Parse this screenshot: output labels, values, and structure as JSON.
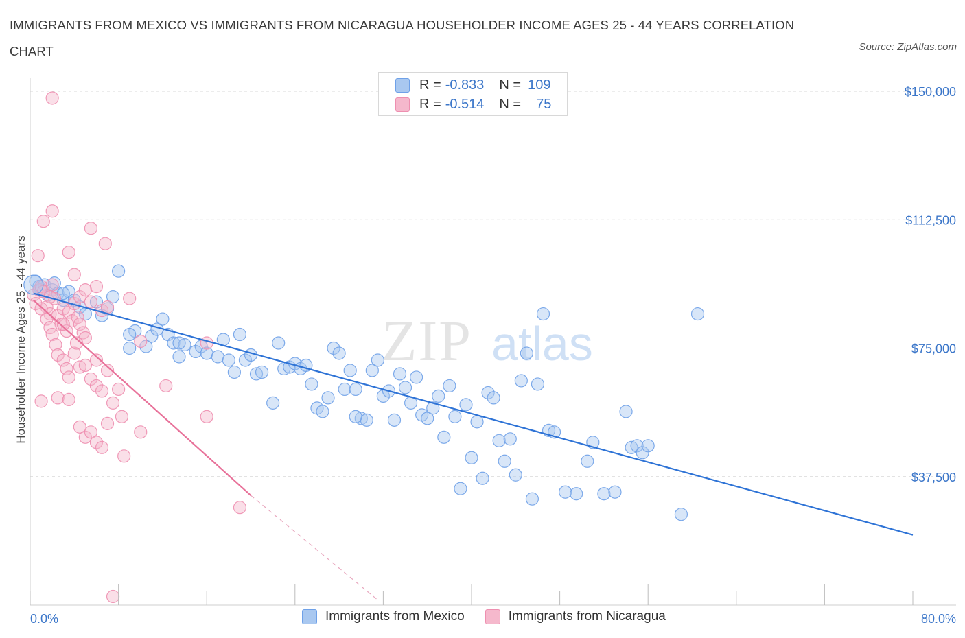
{
  "header": {
    "title": "IMMIGRANTS FROM MEXICO VS IMMIGRANTS FROM NICARAGUA HOUSEHOLDER INCOME AGES 25 - 44 YEARS CORRELATION CHART",
    "source": "Source: ZipAtlas.com"
  },
  "watermark": "ZIPatlas",
  "legend": {
    "rows": [
      {
        "r_label": "R =",
        "r_value": "-0.833",
        "n_label": "N =",
        "n_value": "109",
        "color": "#a9c8f0"
      },
      {
        "r_label": "R =",
        "r_value": "-0.514",
        "n_label": "N =",
        "n_value": "75",
        "color": "#f5b8cc"
      }
    ]
  },
  "bottom_legend": [
    "Immigrants from Mexico",
    "Immigrants from Nicaragua"
  ],
  "chart_data": {
    "type": "scatter",
    "title": "IMMIGRANTS FROM MEXICO VS IMMIGRANTS FROM NICARAGUA HOUSEHOLDER INCOME AGES 25 - 44 YEARS CORRELATION CHART",
    "xlabel": "",
    "ylabel": "Householder Income Ages 25 - 44 years",
    "xlim": [
      0,
      80
    ],
    "ylim": [
      0,
      155000
    ],
    "x_tick_labels": [
      "0.0%",
      "80.0%"
    ],
    "y_ticks": [
      37500,
      75000,
      112500,
      150000
    ],
    "y_tick_labels": [
      "$37,500",
      "$75,000",
      "$112,500",
      "$150,000"
    ],
    "grid": true,
    "series": [
      {
        "name": "Immigrants from Mexico",
        "color": "#6fa1e8",
        "fill": "#a9c8f0",
        "trend": {
          "x": [
            0.3,
            80
          ],
          "y": [
            91000,
            20500
          ]
        },
        "points": [
          [
            0.5,
            94500
          ],
          [
            0.8,
            93000
          ],
          [
            1.0,
            92000
          ],
          [
            1.3,
            93500
          ],
          [
            1.6,
            90500
          ],
          [
            2.0,
            92000
          ],
          [
            2.2,
            94000
          ],
          [
            2.5,
            91000
          ],
          [
            3.0,
            89000
          ],
          [
            3.5,
            91500
          ],
          [
            4.0,
            89000
          ],
          [
            4.5,
            87000
          ],
          [
            5.0,
            85000
          ],
          [
            6.0,
            88500
          ],
          [
            7.0,
            86500
          ],
          [
            7.5,
            90000
          ],
          [
            8.0,
            97500
          ],
          [
            9.0,
            75000
          ],
          [
            9.5,
            80000
          ],
          [
            10.5,
            75500
          ],
          [
            11.0,
            78500
          ],
          [
            11.5,
            80500
          ],
          [
            12.0,
            83500
          ],
          [
            12.5,
            79000
          ],
          [
            13.0,
            76500
          ],
          [
            13.5,
            72500
          ],
          [
            14.0,
            76000
          ],
          [
            15.0,
            74000
          ],
          [
            15.5,
            75500
          ],
          [
            16.0,
            73500
          ],
          [
            17.0,
            72500
          ],
          [
            17.5,
            77500
          ],
          [
            18.0,
            71500
          ],
          [
            18.5,
            68000
          ],
          [
            19.0,
            79000
          ],
          [
            19.5,
            71500
          ],
          [
            20.0,
            73000
          ],
          [
            20.5,
            67500
          ],
          [
            21.0,
            68000
          ],
          [
            22.0,
            59000
          ],
          [
            22.5,
            76500
          ],
          [
            23.0,
            69000
          ],
          [
            23.5,
            69500
          ],
          [
            24.0,
            70500
          ],
          [
            24.5,
            69000
          ],
          [
            25.0,
            70000
          ],
          [
            25.5,
            64500
          ],
          [
            26.0,
            57500
          ],
          [
            26.5,
            56500
          ],
          [
            27.0,
            60500
          ],
          [
            27.5,
            75000
          ],
          [
            28.0,
            73500
          ],
          [
            28.5,
            63000
          ],
          [
            29.0,
            68500
          ],
          [
            29.5,
            63000
          ],
          [
            30.0,
            54500
          ],
          [
            30.5,
            54000
          ],
          [
            31.0,
            68500
          ],
          [
            31.5,
            71500
          ],
          [
            32.0,
            61000
          ],
          [
            32.5,
            62500
          ],
          [
            33.0,
            54000
          ],
          [
            33.5,
            67500
          ],
          [
            34.0,
            63500
          ],
          [
            34.5,
            59000
          ],
          [
            35.0,
            66500
          ],
          [
            35.5,
            55500
          ],
          [
            36.0,
            54500
          ],
          [
            36.5,
            57500
          ],
          [
            37.0,
            61000
          ],
          [
            37.5,
            49000
          ],
          [
            38.0,
            64000
          ],
          [
            38.5,
            55000
          ],
          [
            39.0,
            34000
          ],
          [
            39.5,
            58500
          ],
          [
            40.0,
            43000
          ],
          [
            40.5,
            53500
          ],
          [
            41.0,
            37000
          ],
          [
            41.5,
            62000
          ],
          [
            42.0,
            60500
          ],
          [
            42.5,
            48000
          ],
          [
            43.0,
            42000
          ],
          [
            43.5,
            48500
          ],
          [
            44.0,
            38000
          ],
          [
            44.5,
            65500
          ],
          [
            45.0,
            73500
          ],
          [
            45.5,
            31000
          ],
          [
            46.0,
            64500
          ],
          [
            46.5,
            85000
          ],
          [
            47.0,
            51000
          ],
          [
            47.5,
            50500
          ],
          [
            48.5,
            33000
          ],
          [
            49.5,
            32500
          ],
          [
            50.5,
            42000
          ],
          [
            51.0,
            47500
          ],
          [
            52.0,
            32500
          ],
          [
            53.0,
            33000
          ],
          [
            54.0,
            56500
          ],
          [
            54.5,
            46000
          ],
          [
            55.0,
            46500
          ],
          [
            55.5,
            44500
          ],
          [
            56.0,
            46500
          ],
          [
            59.0,
            26500
          ],
          [
            60.5,
            85000
          ],
          [
            6.5,
            84500
          ],
          [
            9.0,
            79000
          ],
          [
            3.0,
            91000
          ],
          [
            13.5,
            76500
          ],
          [
            29.5,
            55000
          ]
        ]
      },
      {
        "name": "Immigrants from Nicaragua",
        "color": "#ee8fb0",
        "fill": "#f5b8cc",
        "trend": {
          "x": [
            0.3,
            20
          ],
          "y": [
            89000,
            32000
          ]
        },
        "trend_dashed": {
          "x": [
            20,
            31.5
          ],
          "y": [
            32000,
            1500
          ]
        },
        "points": [
          [
            0.3,
            90500
          ],
          [
            0.5,
            88000
          ],
          [
            0.8,
            92000
          ],
          [
            1.0,
            93000
          ],
          [
            1.2,
            91500
          ],
          [
            1.5,
            87000
          ],
          [
            1.8,
            85000
          ],
          [
            2.0,
            93500
          ],
          [
            2.2,
            89500
          ],
          [
            2.5,
            84500
          ],
          [
            2.8,
            82000
          ],
          [
            3.0,
            86500
          ],
          [
            3.3,
            80000
          ],
          [
            3.5,
            85500
          ],
          [
            3.8,
            83000
          ],
          [
            4.0,
            88000
          ],
          [
            4.3,
            84000
          ],
          [
            4.5,
            82000
          ],
          [
            4.8,
            79500
          ],
          [
            5.0,
            78000
          ],
          [
            0.7,
            102000
          ],
          [
            1.2,
            112000
          ],
          [
            2.0,
            115000
          ],
          [
            3.5,
            103000
          ],
          [
            5.5,
            110000
          ],
          [
            6.8,
            105500
          ],
          [
            2.0,
            148000
          ],
          [
            1.0,
            86500
          ],
          [
            1.5,
            83500
          ],
          [
            1.8,
            81000
          ],
          [
            2.0,
            79000
          ],
          [
            2.3,
            76000
          ],
          [
            2.5,
            73000
          ],
          [
            3.0,
            71500
          ],
          [
            3.3,
            69000
          ],
          [
            3.5,
            66500
          ],
          [
            4.0,
            73500
          ],
          [
            4.5,
            69500
          ],
          [
            5.0,
            70000
          ],
          [
            5.5,
            66000
          ],
          [
            6.0,
            64000
          ],
          [
            6.5,
            62500
          ],
          [
            7.0,
            68500
          ],
          [
            7.5,
            59000
          ],
          [
            8.0,
            63000
          ],
          [
            8.3,
            55000
          ],
          [
            1.0,
            59500
          ],
          [
            2.5,
            60500
          ],
          [
            3.5,
            60000
          ],
          [
            4.5,
            52000
          ],
          [
            5.0,
            49000
          ],
          [
            5.5,
            50500
          ],
          [
            6.0,
            47500
          ],
          [
            6.5,
            46000
          ],
          [
            7.0,
            53000
          ],
          [
            8.5,
            43500
          ],
          [
            10.0,
            50500
          ],
          [
            12.3,
            64000
          ],
          [
            16.0,
            55000
          ],
          [
            19.0,
            28500
          ],
          [
            7.5,
            2500
          ],
          [
            4.0,
            96500
          ],
          [
            4.5,
            90000
          ],
          [
            5.5,
            88500
          ],
          [
            6.5,
            86000
          ],
          [
            7.0,
            87000
          ],
          [
            10.0,
            77000
          ],
          [
            9.0,
            89500
          ],
          [
            6.0,
            93000
          ],
          [
            5.0,
            92000
          ],
          [
            3.0,
            82000
          ],
          [
            4.2,
            76500
          ],
          [
            6.0,
            71500
          ],
          [
            16.0,
            76500
          ],
          [
            1.8,
            90000
          ]
        ]
      }
    ]
  }
}
